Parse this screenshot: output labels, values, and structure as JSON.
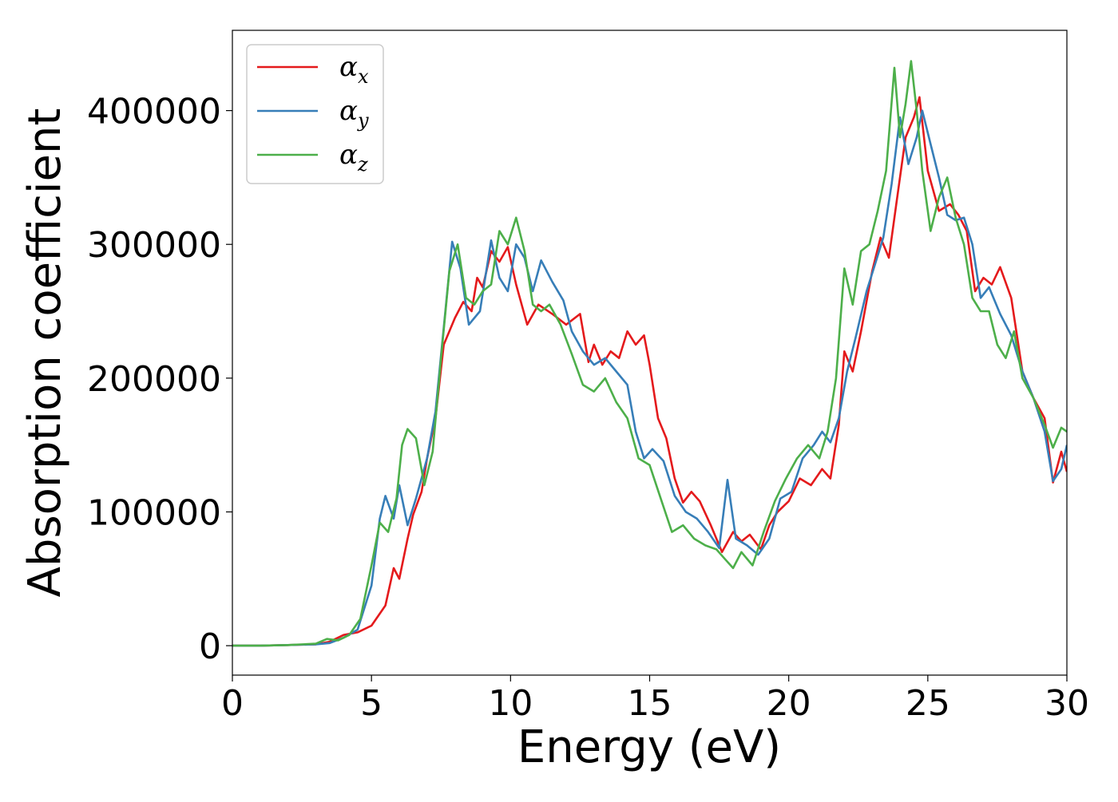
{
  "chart_data": {
    "type": "line",
    "xlabel": "Energy (eV)",
    "ylabel": "Absorption coefficient",
    "xlim": [
      0,
      30
    ],
    "ylim": [
      -22000,
      460000
    ],
    "x_ticks": [
      0,
      5,
      10,
      15,
      20,
      25,
      30
    ],
    "y_ticks": [
      0,
      100000,
      200000,
      300000,
      400000
    ],
    "grid": false,
    "legend_position": "top-left",
    "series": [
      {
        "name": "αx",
        "symbol": "α",
        "subscript": "x",
        "color": "#e41a1c",
        "x": [
          0,
          1,
          2,
          3,
          3.5,
          4,
          4.5,
          5,
          5.5,
          5.8,
          6.0,
          6.3,
          6.5,
          6.8,
          7.0,
          7.3,
          7.6,
          8.0,
          8.3,
          8.6,
          8.8,
          9.0,
          9.3,
          9.6,
          9.9,
          10.2,
          10.6,
          11.0,
          11.5,
          12.0,
          12.5,
          12.8,
          13.0,
          13.3,
          13.6,
          13.9,
          14.2,
          14.5,
          14.8,
          15.0,
          15.3,
          15.6,
          15.9,
          16.2,
          16.5,
          16.8,
          17.2,
          17.6,
          18.0,
          18.3,
          18.6,
          19.0,
          19.3,
          19.6,
          20.0,
          20.4,
          20.8,
          21.2,
          21.5,
          21.8,
          22.0,
          22.3,
          22.6,
          23.0,
          23.3,
          23.6,
          23.9,
          24.2,
          24.5,
          24.7,
          25.0,
          25.4,
          25.8,
          26.1,
          26.4,
          26.7,
          27.0,
          27.3,
          27.6,
          28.0,
          28.4,
          28.8,
          29.2,
          29.5,
          29.8,
          30.0
        ],
        "values": [
          0,
          0,
          500,
          1000,
          3000,
          8000,
          10000,
          15000,
          30000,
          58000,
          50000,
          80000,
          98000,
          115000,
          140000,
          170000,
          225000,
          245000,
          257000,
          250000,
          275000,
          268000,
          295000,
          287000,
          298000,
          270000,
          240000,
          255000,
          248000,
          240000,
          248000,
          212000,
          225000,
          210000,
          220000,
          215000,
          235000,
          225000,
          232000,
          210000,
          170000,
          155000,
          125000,
          107000,
          115000,
          108000,
          90000,
          70000,
          85000,
          78000,
          83000,
          72000,
          90000,
          100000,
          108000,
          125000,
          120000,
          132000,
          125000,
          165000,
          220000,
          205000,
          235000,
          280000,
          305000,
          290000,
          335000,
          380000,
          395000,
          410000,
          355000,
          325000,
          330000,
          322000,
          310000,
          265000,
          275000,
          270000,
          283000,
          260000,
          205000,
          185000,
          170000,
          122000,
          145000,
          130000
        ]
      },
      {
        "name": "αy",
        "symbol": "α",
        "subscript": "y",
        "color": "#377eb8",
        "x": [
          0,
          1,
          2,
          3,
          3.5,
          4,
          4.5,
          5,
          5.3,
          5.5,
          5.8,
          6.0,
          6.3,
          6.6,
          7.0,
          7.3,
          7.6,
          7.9,
          8.2,
          8.5,
          8.9,
          9.3,
          9.6,
          9.9,
          10.2,
          10.5,
          10.8,
          11.1,
          11.5,
          11.9,
          12.2,
          12.6,
          13.0,
          13.4,
          13.8,
          14.2,
          14.5,
          14.8,
          15.1,
          15.5,
          15.9,
          16.3,
          16.7,
          17.1,
          17.5,
          17.8,
          18.1,
          18.5,
          18.9,
          19.3,
          19.7,
          20.1,
          20.5,
          20.9,
          21.2,
          21.5,
          21.8,
          22.1,
          22.4,
          22.8,
          23.1,
          23.4,
          23.7,
          24.0,
          24.3,
          24.6,
          24.8,
          25.1,
          25.4,
          25.7,
          26.0,
          26.3,
          26.6,
          26.9,
          27.2,
          27.6,
          28.0,
          28.4,
          28.8,
          29.2,
          29.5,
          29.8,
          30.0
        ],
        "values": [
          0,
          0,
          500,
          1000,
          2000,
          6000,
          12000,
          45000,
          95000,
          112000,
          95000,
          120000,
          90000,
          110000,
          140000,
          175000,
          238000,
          302000,
          282000,
          240000,
          250000,
          303000,
          275000,
          265000,
          300000,
          290000,
          265000,
          288000,
          272000,
          258000,
          235000,
          220000,
          210000,
          215000,
          205000,
          195000,
          160000,
          140000,
          147000,
          138000,
          112000,
          100000,
          95000,
          85000,
          73000,
          124000,
          80000,
          75000,
          68000,
          80000,
          110000,
          115000,
          140000,
          150000,
          160000,
          152000,
          170000,
          205000,
          230000,
          265000,
          285000,
          305000,
          345000,
          395000,
          360000,
          380000,
          400000,
          375000,
          350000,
          322000,
          318000,
          320000,
          300000,
          260000,
          268000,
          248000,
          232000,
          205000,
          185000,
          160000,
          123000,
          132000,
          150000
        ]
      },
      {
        "name": "αz",
        "symbol": "α",
        "subscript": "z",
        "color": "#4daf4a",
        "x": [
          0,
          1,
          2,
          3,
          3.4,
          3.8,
          4.2,
          4.6,
          5.0,
          5.3,
          5.6,
          5.9,
          6.1,
          6.3,
          6.6,
          6.9,
          7.2,
          7.5,
          7.8,
          8.1,
          8.4,
          8.7,
          9.0,
          9.3,
          9.6,
          9.9,
          10.2,
          10.5,
          10.8,
          11.1,
          11.4,
          11.8,
          12.2,
          12.6,
          13.0,
          13.4,
          13.8,
          14.2,
          14.6,
          15.0,
          15.4,
          15.8,
          16.2,
          16.6,
          17.0,
          17.4,
          17.7,
          18.0,
          18.3,
          18.7,
          19.1,
          19.5,
          19.9,
          20.3,
          20.7,
          21.1,
          21.4,
          21.7,
          22.0,
          22.3,
          22.6,
          22.9,
          23.2,
          23.5,
          23.8,
          24.0,
          24.2,
          24.4,
          24.6,
          24.8,
          25.1,
          25.4,
          25.7,
          26.0,
          26.3,
          26.6,
          26.9,
          27.2,
          27.5,
          27.8,
          28.1,
          28.4,
          28.8,
          29.2,
          29.5,
          29.8,
          30.0
        ],
        "values": [
          0,
          0,
          500,
          1500,
          5000,
          4000,
          8000,
          20000,
          60000,
          92000,
          85000,
          110000,
          150000,
          162000,
          155000,
          120000,
          145000,
          215000,
          280000,
          300000,
          260000,
          255000,
          265000,
          270000,
          310000,
          300000,
          320000,
          295000,
          255000,
          250000,
          255000,
          240000,
          218000,
          195000,
          190000,
          200000,
          182000,
          170000,
          140000,
          135000,
          110000,
          85000,
          90000,
          80000,
          75000,
          72000,
          65000,
          58000,
          70000,
          60000,
          85000,
          108000,
          125000,
          140000,
          150000,
          140000,
          160000,
          200000,
          282000,
          255000,
          295000,
          300000,
          325000,
          355000,
          432000,
          380000,
          405000,
          437000,
          400000,
          355000,
          310000,
          335000,
          350000,
          320000,
          300000,
          260000,
          250000,
          250000,
          225000,
          215000,
          235000,
          200000,
          185000,
          165000,
          148000,
          163000,
          160000
        ]
      }
    ]
  }
}
